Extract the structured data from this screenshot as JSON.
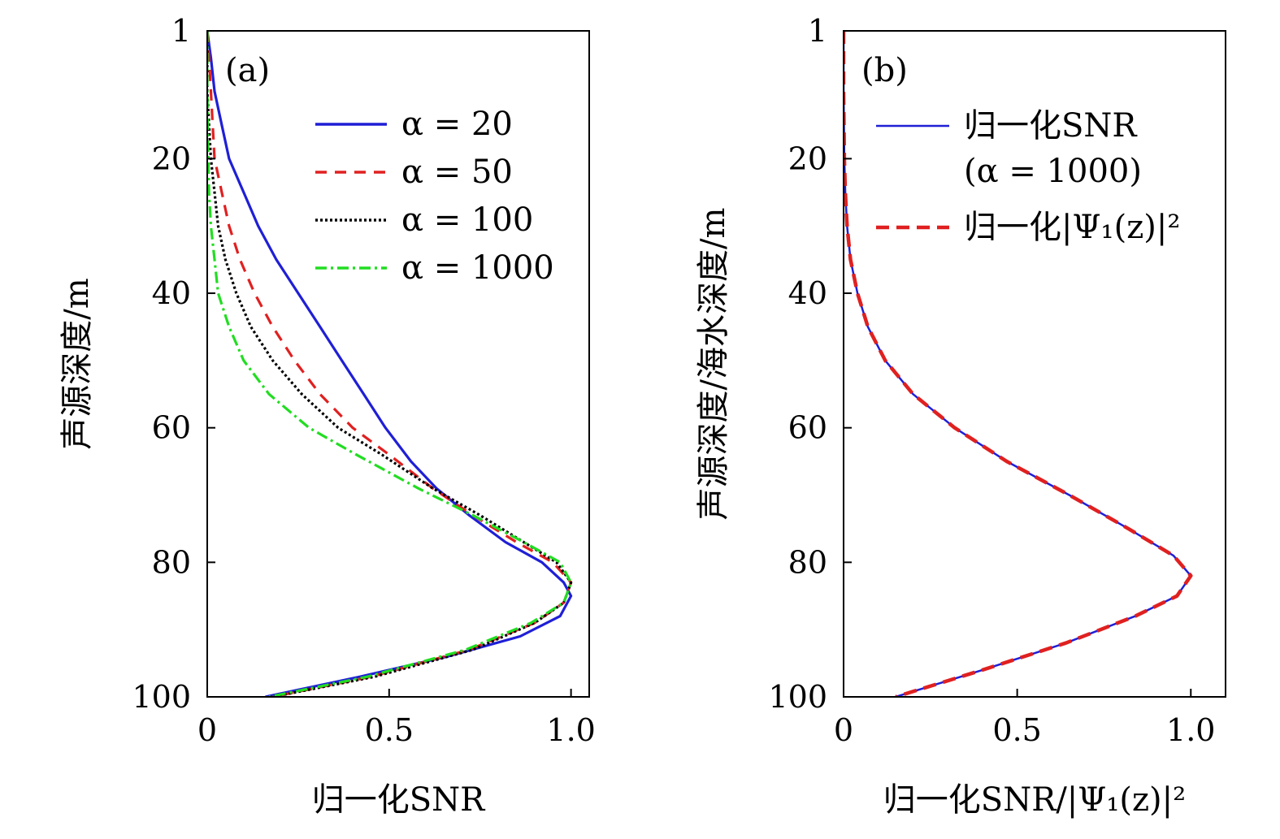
{
  "chart_data": [
    {
      "type": "line",
      "panel_label": "(a)",
      "xlabel": "归一化SNR",
      "ylabel": "声源深度/m",
      "xlim": [
        0,
        1.05
      ],
      "ylim": [
        1,
        100
      ],
      "y_inverted": true,
      "xticks": [
        "0",
        "0.5",
        "1.0"
      ],
      "xtick_values": [
        0,
        0.5,
        1.0
      ],
      "yticks": [
        "1",
        "20",
        "40",
        "60",
        "80",
        "100"
      ],
      "ytick_values": [
        1,
        20,
        40,
        60,
        80,
        100
      ],
      "grid": false,
      "legend_position": "top-right",
      "series": [
        {
          "name": "α = 20",
          "color": "#1f1fd6",
          "dash": "solid",
          "points": [
            [
              0.0,
              1
            ],
            [
              0.01,
              5
            ],
            [
              0.02,
              10
            ],
            [
              0.04,
              15
            ],
            [
              0.06,
              20
            ],
            [
              0.1,
              25
            ],
            [
              0.14,
              30
            ],
            [
              0.19,
              35
            ],
            [
              0.25,
              40
            ],
            [
              0.31,
              45
            ],
            [
              0.37,
              50
            ],
            [
              0.43,
              55
            ],
            [
              0.49,
              60
            ],
            [
              0.56,
              65
            ],
            [
              0.63,
              69
            ],
            [
              0.72,
              73
            ],
            [
              0.82,
              77
            ],
            [
              0.92,
              80
            ],
            [
              0.98,
              83
            ],
            [
              1.0,
              85
            ],
            [
              0.97,
              88
            ],
            [
              0.86,
              91
            ],
            [
              0.66,
              94
            ],
            [
              0.42,
              97
            ],
            [
              0.16,
              100
            ]
          ]
        },
        {
          "name": "α = 50",
          "color": "#e02020",
          "dash": "14 10",
          "points": [
            [
              0.0,
              1
            ],
            [
              0.005,
              5
            ],
            [
              0.01,
              10
            ],
            [
              0.015,
              15
            ],
            [
              0.02,
              20
            ],
            [
              0.04,
              25
            ],
            [
              0.06,
              30
            ],
            [
              0.09,
              35
            ],
            [
              0.13,
              40
            ],
            [
              0.18,
              45
            ],
            [
              0.24,
              50
            ],
            [
              0.31,
              55
            ],
            [
              0.4,
              60
            ],
            [
              0.5,
              64
            ],
            [
              0.62,
              69
            ],
            [
              0.73,
              73
            ],
            [
              0.85,
              77
            ],
            [
              0.95,
              80
            ],
            [
              1.0,
              83
            ],
            [
              0.98,
              86
            ],
            [
              0.9,
              89
            ],
            [
              0.72,
              93
            ],
            [
              0.45,
              97
            ],
            [
              0.18,
              100
            ]
          ]
        },
        {
          "name": "α = 100",
          "color": "#000000",
          "dash": "3 3",
          "points": [
            [
              0.0,
              1
            ],
            [
              0.0,
              10
            ],
            [
              0.005,
              15
            ],
            [
              0.01,
              20
            ],
            [
              0.02,
              25
            ],
            [
              0.03,
              30
            ],
            [
              0.05,
              35
            ],
            [
              0.08,
              40
            ],
            [
              0.12,
              45
            ],
            [
              0.18,
              50
            ],
            [
              0.26,
              55
            ],
            [
              0.36,
              60
            ],
            [
              0.48,
              64
            ],
            [
              0.62,
              69
            ],
            [
              0.75,
              73
            ],
            [
              0.87,
              77
            ],
            [
              0.96,
              80
            ],
            [
              1.0,
              83
            ],
            [
              0.98,
              86
            ],
            [
              0.9,
              89
            ],
            [
              0.73,
              93
            ],
            [
              0.46,
              97
            ],
            [
              0.18,
              100
            ]
          ]
        },
        {
          "name": "α = 1000",
          "color": "#22dd22",
          "dash": "14 5 3 5",
          "points": [
            [
              0.0,
              1
            ],
            [
              0.0,
              10
            ],
            [
              0.003,
              20
            ],
            [
              0.005,
              25
            ],
            [
              0.01,
              30
            ],
            [
              0.02,
              35
            ],
            [
              0.03,
              40
            ],
            [
              0.06,
              45
            ],
            [
              0.1,
              50
            ],
            [
              0.17,
              55
            ],
            [
              0.28,
              60
            ],
            [
              0.41,
              64
            ],
            [
              0.58,
              69
            ],
            [
              0.73,
              73
            ],
            [
              0.87,
              77
            ],
            [
              0.97,
              80
            ],
            [
              1.0,
              83
            ],
            [
              0.98,
              86
            ],
            [
              0.89,
              89
            ],
            [
              0.71,
              93
            ],
            [
              0.44,
              97
            ],
            [
              0.17,
              100
            ]
          ]
        }
      ]
    },
    {
      "type": "line",
      "panel_label": "(b)",
      "xlabel": "归一化SNR/|Ψ₁(z)|²",
      "ylabel": "声源深度/海水深度/m",
      "xlim": [
        0,
        1.1
      ],
      "ylim": [
        1,
        100
      ],
      "y_inverted": true,
      "xticks": [
        "0",
        "0.5",
        "1.0"
      ],
      "xtick_values": [
        0,
        0.5,
        1.0
      ],
      "yticks": [
        "1",
        "20",
        "40",
        "60",
        "80",
        "100"
      ],
      "ytick_values": [
        1,
        20,
        40,
        60,
        80,
        100
      ],
      "grid": false,
      "legend_position": "top-right",
      "legend_lines": [
        [
          "归一化SNR",
          "(α = 1000)"
        ],
        [
          "归一化|Ψ₁(z)|²"
        ]
      ],
      "series": [
        {
          "name": "归一化SNR (α = 1000)",
          "color": "#1f1fd6",
          "dash": "solid",
          "width": 2.5,
          "points": [
            [
              0.0,
              1
            ],
            [
              0.0,
              10
            ],
            [
              0.002,
              20
            ],
            [
              0.005,
              25
            ],
            [
              0.01,
              30
            ],
            [
              0.02,
              35
            ],
            [
              0.04,
              40
            ],
            [
              0.07,
              45
            ],
            [
              0.12,
              50
            ],
            [
              0.2,
              55
            ],
            [
              0.32,
              60
            ],
            [
              0.47,
              65
            ],
            [
              0.65,
              70
            ],
            [
              0.82,
              75
            ],
            [
              0.95,
              79
            ],
            [
              1.0,
              82
            ],
            [
              0.96,
              85
            ],
            [
              0.84,
              88
            ],
            [
              0.64,
              92
            ],
            [
              0.4,
              96
            ],
            [
              0.15,
              100
            ]
          ]
        },
        {
          "name": "归一化|Ψ₁(z)|²",
          "color": "#e02020",
          "dash": "16 9",
          "width": 4.5,
          "points": [
            [
              0.0,
              1
            ],
            [
              0.0,
              10
            ],
            [
              0.002,
              20
            ],
            [
              0.005,
              25
            ],
            [
              0.01,
              30
            ],
            [
              0.02,
              35
            ],
            [
              0.04,
              40
            ],
            [
              0.07,
              45
            ],
            [
              0.12,
              50
            ],
            [
              0.2,
              55
            ],
            [
              0.32,
              60
            ],
            [
              0.47,
              65
            ],
            [
              0.65,
              70
            ],
            [
              0.82,
              75
            ],
            [
              0.95,
              79
            ],
            [
              1.0,
              82
            ],
            [
              0.96,
              85
            ],
            [
              0.84,
              88
            ],
            [
              0.64,
              92
            ],
            [
              0.4,
              96
            ],
            [
              0.15,
              100
            ]
          ]
        }
      ]
    }
  ]
}
